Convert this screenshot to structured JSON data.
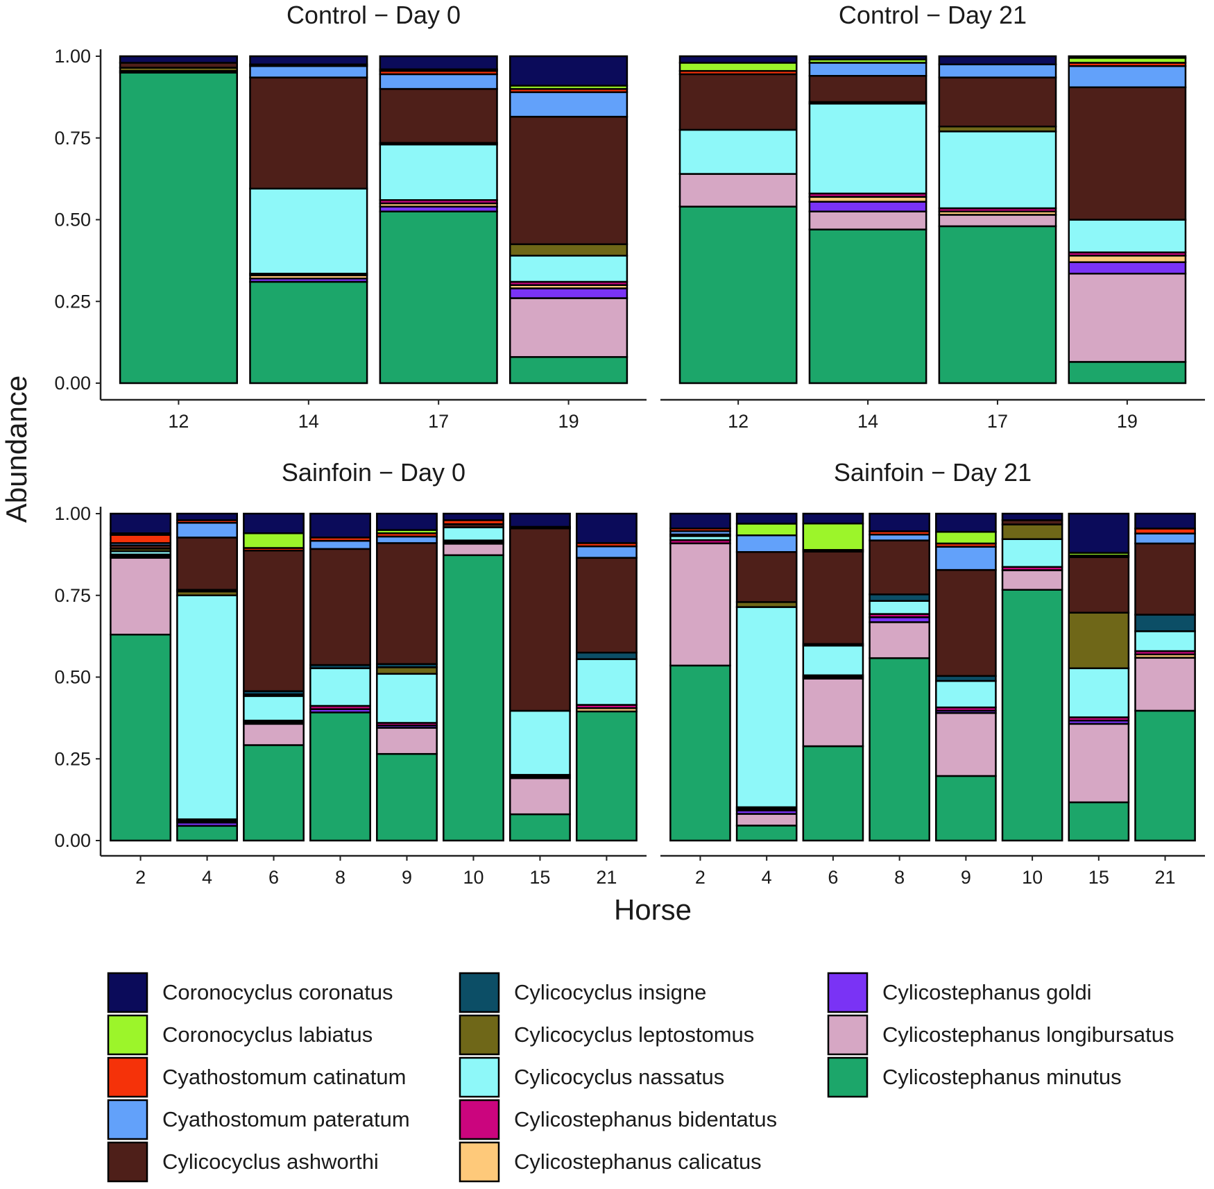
{
  "chart_data": {
    "type": "bar",
    "stacked": true,
    "xlabel": "Horse",
    "ylabel": "Abundance",
    "ylim": [
      0,
      1
    ],
    "yticks": [
      "0.00",
      "0.25",
      "0.50",
      "0.75",
      "1.00"
    ],
    "grid": false,
    "legend_position": "bottom",
    "species": [
      {
        "name": "Coronocyclus coronatus",
        "color": "#0b0b5a"
      },
      {
        "name": "Coronocyclus labiatus",
        "color": "#9cf52a"
      },
      {
        "name": "Cyathostomum catinatum",
        "color": "#f53209"
      },
      {
        "name": "Cyathostomum pateratum",
        "color": "#62a1fa"
      },
      {
        "name": "Cylicocyclus ashworthi",
        "color": "#4e1f19"
      },
      {
        "name": "Cylicocyclus insigne",
        "color": "#0c4e66"
      },
      {
        "name": "Cylicocyclus leptostomus",
        "color": "#6f6718"
      },
      {
        "name": "Cylicocyclus nassatus",
        "color": "#8ef8f9"
      },
      {
        "name": "Cylicostephanus bidentatus",
        "color": "#cb057e"
      },
      {
        "name": "Cylicostephanus calicatus",
        "color": "#fec97a"
      },
      {
        "name": "Cylicostephanus goldi",
        "color": "#7a33f5"
      },
      {
        "name": "Cylicostephanus longibursatus",
        "color": "#d6a7c4"
      },
      {
        "name": "Cylicostephanus minutus",
        "color": "#1ca66a"
      }
    ],
    "facets": [
      {
        "title": "Control − Day 0",
        "bars": [
          {
            "horse": "12",
            "values": [
              0.02,
              0,
              0,
              0,
              0.015,
              0,
              0.01,
              0.005,
              0,
              0,
              0,
              0,
              0.95
            ]
          },
          {
            "horse": "14",
            "values": [
              0.025,
              0,
              0.005,
              0.035,
              0.34,
              0,
              0,
              0.26,
              0.005,
              0.01,
              0.01,
              0,
              0.31
            ]
          },
          {
            "horse": "17",
            "values": [
              0.04,
              0.005,
              0.01,
              0.045,
              0.165,
              0,
              0.005,
              0.17,
              0.01,
              0.01,
              0.015,
              0,
              0.525
            ]
          },
          {
            "horse": "19",
            "values": [
              0.09,
              0.01,
              0.01,
              0.075,
              0.39,
              0,
              0.035,
              0.08,
              0.01,
              0.01,
              0.03,
              0.18,
              0.08
            ]
          }
        ]
      },
      {
        "title": "Control − Day 21",
        "bars": [
          {
            "horse": "12",
            "values": [
              0.02,
              0.025,
              0.01,
              0,
              0.17,
              0,
              0,
              0.135,
              0,
              0,
              0,
              0.1,
              0.54
            ]
          },
          {
            "horse": "14",
            "values": [
              0.01,
              0.01,
              0,
              0.04,
              0.08,
              0.005,
              0,
              0.275,
              0.01,
              0.015,
              0.03,
              0.055,
              0.47
            ]
          },
          {
            "horse": "17",
            "values": [
              0.025,
              0,
              0,
              0.04,
              0.15,
              0,
              0.015,
              0.235,
              0.01,
              0.01,
              0,
              0.035,
              0.48
            ]
          },
          {
            "horse": "19",
            "values": [
              0.005,
              0.015,
              0.01,
              0.065,
              0.405,
              0,
              0,
              0.1,
              0.01,
              0.02,
              0.035,
              0.27,
              0.065
            ]
          }
        ]
      },
      {
        "title": "Sainfoin − Day 0",
        "bars": [
          {
            "horse": "2",
            "values": [
              0.06,
              0.005,
              0.025,
              0.007,
              0.01,
              0,
              0.008,
              0.01,
              0.005,
              0,
              0.005,
              0.235,
              0.63
            ]
          },
          {
            "horse": "4",
            "values": [
              0.02,
              0,
              0.008,
              0.045,
              0.16,
              0.005,
              0.012,
              0.685,
              0.005,
              0.005,
              0.01,
              0,
              0.045
            ]
          },
          {
            "horse": "6",
            "values": [
              0.06,
              0.045,
              0.008,
              0,
              0.43,
              0.01,
              0.005,
              0.075,
              0.005,
              0,
              0.005,
              0.065,
              0.292
            ]
          },
          {
            "horse": "8",
            "values": [
              0.073,
              0,
              0.01,
              0.025,
              0.355,
              0.01,
              0,
              0.115,
              0.01,
              0,
              0.01,
              0,
              0.392
            ]
          },
          {
            "horse": "9",
            "values": [
              0.05,
              0.01,
              0.01,
              0.02,
              0.37,
              0.01,
              0.02,
              0.15,
              0.008,
              0,
              0.007,
              0.08,
              0.265
            ]
          },
          {
            "horse": "10",
            "values": [
              0.02,
              0,
              0.012,
              0,
              0.01,
              0,
              0,
              0.04,
              0.005,
              0,
              0.005,
              0.035,
              0.873
            ]
          },
          {
            "horse": "15",
            "values": [
              0.04,
              0,
              0.005,
              0,
              0.555,
              0,
              0,
              0.195,
              0.005,
              0,
              0.005,
              0.11,
              0.08
            ]
          },
          {
            "horse": "21",
            "values": [
              0.09,
              0,
              0.01,
              0.035,
              0.29,
              0.02,
              0,
              0.14,
              0.01,
              0.01,
              0,
              0,
              0.395
            ]
          }
        ]
      },
      {
        "title": "Sainfoin − Day 21",
        "bars": [
          {
            "horse": "2",
            "values": [
              0.045,
              0,
              0.008,
              0.01,
              0.005,
              0,
              0,
              0.012,
              0.01,
              0,
              0,
              0.37,
              0.53
            ]
          },
          {
            "horse": "4",
            "values": [
              0.03,
              0.035,
              0,
              0.05,
              0.15,
              0,
              0.015,
              0.6,
              0.005,
              0.005,
              0.01,
              0.035,
              0.045
            ]
          },
          {
            "horse": "6",
            "values": [
              0.03,
              0.08,
              0.005,
              0,
              0.28,
              0.005,
              0,
              0.09,
              0.005,
              0,
              0.005,
              0.205,
              0.286
            ]
          },
          {
            "horse": "8",
            "values": [
              0.054,
              0,
              0.01,
              0.018,
              0.165,
              0.02,
              0,
              0.04,
              0.01,
              0,
              0.015,
              0.11,
              0.558
            ]
          },
          {
            "horse": "9",
            "values": [
              0.055,
              0.035,
              0.01,
              0.07,
              0.32,
              0.015,
              0,
              0.08,
              0.01,
              0,
              0.007,
              0.19,
              0.195
            ]
          },
          {
            "horse": "10",
            "values": [
              0.02,
              0,
              0,
              0,
              0.013,
              0,
              0.045,
              0.085,
              0.01,
              0,
              0,
              0.06,
              0.767
            ]
          },
          {
            "horse": "15",
            "values": [
              0.12,
              0.008,
              0.005,
              0,
              0.17,
              0,
              0.17,
              0.15,
              0.01,
              0,
              0.01,
              0.24,
              0.117
            ]
          },
          {
            "horse": "21",
            "values": [
              0.045,
              0,
              0.015,
              0.03,
              0.215,
              0.05,
              0,
              0.06,
              0.01,
              0.01,
              0,
              0.16,
              0.392
            ]
          }
        ]
      }
    ]
  }
}
